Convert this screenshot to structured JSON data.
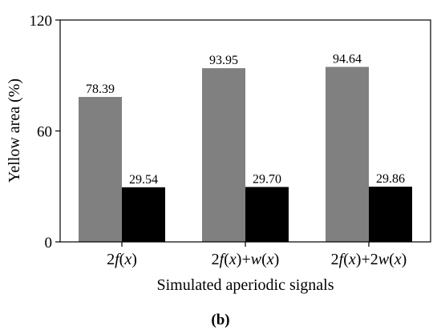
{
  "chart_data": {
    "type": "bar",
    "categories": [
      {
        "parts": [
          {
            "t": "2",
            "i": false
          },
          {
            "t": "f",
            "i": true
          },
          {
            "t": "(",
            "i": false
          },
          {
            "t": "x",
            "i": true
          },
          {
            "t": ")",
            "i": false
          }
        ]
      },
      {
        "parts": [
          {
            "t": "2",
            "i": false
          },
          {
            "t": "f",
            "i": true
          },
          {
            "t": "(",
            "i": false
          },
          {
            "t": "x",
            "i": true
          },
          {
            "t": ")+",
            "i": false
          },
          {
            "t": "w",
            "i": true
          },
          {
            "t": "(",
            "i": false
          },
          {
            "t": "x",
            "i": true
          },
          {
            "t": ")",
            "i": false
          }
        ]
      },
      {
        "parts": [
          {
            "t": "2",
            "i": false
          },
          {
            "t": "f",
            "i": true
          },
          {
            "t": "(",
            "i": false
          },
          {
            "t": "x",
            "i": true
          },
          {
            "t": ")+2",
            "i": false
          },
          {
            "t": "w",
            "i": true
          },
          {
            "t": "(",
            "i": false
          },
          {
            "t": "x",
            "i": true
          },
          {
            "t": ")",
            "i": false
          }
        ]
      }
    ],
    "series": [
      {
        "values": [
          78.39,
          93.95,
          94.64
        ],
        "labels": [
          "78.39",
          "93.95",
          "94.64"
        ],
        "color": "#808080"
      },
      {
        "values": [
          29.54,
          29.7,
          29.86
        ],
        "labels": [
          "29.54",
          "29.70",
          "29.86"
        ],
        "color": "#000000"
      }
    ],
    "ylim": [
      0,
      120
    ],
    "yticks": [
      0,
      60,
      120
    ],
    "ylabel": "Yellow area (%)",
    "xlabel": "Simulated aperiodic signals",
    "panel_label": "(b)",
    "grid": false,
    "legend": "none"
  }
}
